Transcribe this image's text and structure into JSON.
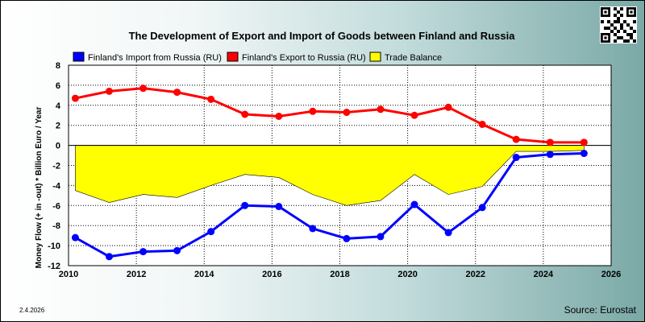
{
  "date_stamp": "2.4.2026",
  "source": "Source: Eurostat",
  "qr_code": "qr-code",
  "chart_data": {
    "type": "line",
    "title": "The Development of Export and Import of Goods between Finland and Russia",
    "ylabel": "Money Flow (+ in -out) * Billion Euro / Year",
    "xlabel": "",
    "xlim": [
      2010,
      2026
    ],
    "ylim": [
      -12,
      8
    ],
    "xticks": [
      "2010",
      "2012",
      "2014",
      "2016",
      "2018",
      "2020",
      "2022",
      "2024",
      "2026"
    ],
    "yticks": [
      "8",
      "6",
      "4",
      "2",
      "0",
      "-2",
      "-4",
      "-6",
      "-8",
      "-10",
      "-12"
    ],
    "grid": true,
    "legend_position": "top",
    "x": [
      2010.2,
      2011.2,
      2012.2,
      2013.2,
      2014.2,
      2015.2,
      2016.2,
      2017.2,
      2018.2,
      2019.2,
      2020.2,
      2021.2,
      2022.2,
      2023.2,
      2024.2,
      2025.2
    ],
    "series": [
      {
        "name": "Finland's Import from Russia (RU)",
        "color": "#0000ff",
        "values": [
          -9.2,
          -11.1,
          -10.6,
          -10.5,
          -8.6,
          -6.0,
          -6.1,
          -8.3,
          -9.3,
          -9.1,
          -5.9,
          -8.7,
          -6.2,
          -1.2,
          -0.9,
          -0.8
        ]
      },
      {
        "name": "Finland's Export to Russia (RU)",
        "color": "#ff0000",
        "values": [
          4.7,
          5.4,
          5.7,
          5.3,
          4.6,
          3.1,
          2.9,
          3.4,
          3.3,
          3.6,
          3.0,
          3.8,
          2.1,
          0.6,
          0.3,
          0.3
        ]
      },
      {
        "name": "Trade Balance",
        "type": "area",
        "color": "#ffff00",
        "values": [
          -4.5,
          -5.7,
          -4.9,
          -5.2,
          -4.0,
          -2.9,
          -3.2,
          -4.9,
          -6.0,
          -5.5,
          -2.9,
          -4.9,
          -4.1,
          -0.6,
          -0.6,
          -0.5
        ]
      }
    ]
  }
}
